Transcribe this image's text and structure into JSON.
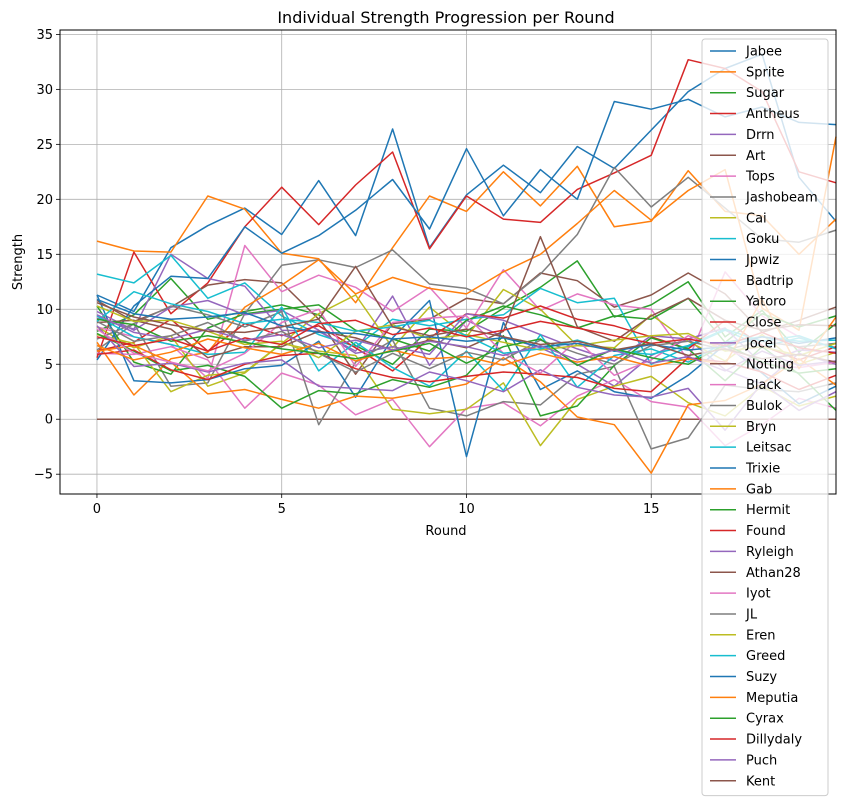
{
  "chart_data": {
    "type": "line",
    "title": "Individual Strength Progression per Round",
    "xlabel": "Round",
    "ylabel": "Strength",
    "xlim": [
      -1,
      20
    ],
    "ylim": [
      -6.8,
      35.4
    ],
    "xticks": [
      0,
      5,
      10,
      15
    ],
    "yticks": [
      -5,
      0,
      5,
      10,
      15,
      20,
      25,
      30,
      35
    ],
    "grid": true,
    "legend_position": "top-right",
    "x": [
      0,
      1,
      2,
      3,
      4,
      5,
      6,
      7,
      8,
      9,
      10,
      11,
      12,
      13,
      14,
      15,
      16,
      17,
      18,
      19,
      20
    ],
    "series": [
      {
        "name": "Jabee",
        "color": "#1f77b4",
        "values": [
          11.3,
          9.8,
          15.6,
          17.6,
          19.2,
          16.8,
          21.7,
          16.7,
          26.4,
          15.6,
          20.4,
          23.1,
          20.6,
          24.8,
          22.8,
          26.3,
          29.8,
          31.9,
          33.2,
          22.0,
          18.0
        ]
      },
      {
        "name": "Sprite",
        "color": "#ff7f0e",
        "values": [
          16.2,
          15.3,
          15.2,
          20.3,
          19.1,
          15.1,
          14.6,
          10.6,
          15.6,
          20.3,
          18.9,
          22.5,
          19.4,
          23.0,
          17.5,
          18.0,
          22.6,
          18.9,
          18.5,
          15.0,
          18.2
        ]
      },
      {
        "name": "Sugar",
        "color": "#2ca02c",
        "values": [
          8.0,
          9.5,
          12.8,
          9.1,
          9.8,
          10.4,
          9.5,
          6.7,
          5.0,
          8.2,
          8.0,
          10.1,
          12.0,
          14.4,
          9.3,
          10.4,
          12.5,
          7.5,
          9.9,
          6.1,
          8.7
        ]
      },
      {
        "name": "Antheus",
        "color": "#d62728",
        "values": [
          5.6,
          15.2,
          9.6,
          12.4,
          17.5,
          21.1,
          17.7,
          21.3,
          24.3,
          15.5,
          20.3,
          18.2,
          17.9,
          20.9,
          22.4,
          24.0,
          32.7,
          31.9,
          29.8,
          22.5,
          21.5
        ]
      },
      {
        "name": "Drrn",
        "color": "#9467bd",
        "values": [
          9.2,
          8.2,
          15.0,
          12.8,
          12.1,
          8.1,
          8.0,
          6.2,
          11.2,
          4.9,
          9.0,
          7.5,
          6.5,
          5.0,
          3.0,
          5.8,
          7.3,
          4.5,
          3.2,
          6.0,
          5.0
        ]
      },
      {
        "name": "Art",
        "color": "#8c564b",
        "values": [
          10.8,
          8.9,
          10.2,
          12.2,
          12.7,
          12.4,
          9.1,
          4.1,
          8.7,
          9.1,
          11.0,
          10.5,
          13.3,
          12.6,
          10.2,
          11.3,
          13.3,
          11.4,
          7.9,
          9.0,
          10.2
        ]
      },
      {
        "name": "Tops",
        "color": "#e377c2",
        "values": [
          8.4,
          7.5,
          6.8,
          3.7,
          15.8,
          11.6,
          13.1,
          12.0,
          9.8,
          12.0,
          8.3,
          13.6,
          9.9,
          11.4,
          10.4,
          10.0,
          5.4,
          13.4,
          9.4,
          7.5,
          6.5
        ]
      },
      {
        "name": "Jashobeam",
        "color": "#7f7f7f",
        "values": [
          6.3,
          8.7,
          3.0,
          3.3,
          9.6,
          14.0,
          14.5,
          13.8,
          15.4,
          12.3,
          11.9,
          10.5,
          13.2,
          16.8,
          22.9,
          19.3,
          22.0,
          19.2,
          16.4,
          16.1,
          17.2
        ]
      },
      {
        "name": "Cai",
        "color": "#bcbd22",
        "values": [
          8.4,
          6.5,
          7.6,
          3.0,
          4.2,
          6.9,
          9.6,
          11.3,
          6.5,
          10.2,
          7.5,
          11.8,
          10.0,
          6.7,
          6.5,
          9.5,
          7.1,
          5.3,
          7.7,
          5.0,
          6.1
        ]
      },
      {
        "name": "Goku",
        "color": "#17becf",
        "values": [
          13.2,
          12.4,
          14.9,
          11.0,
          12.4,
          9.4,
          7.7,
          6.6,
          9.1,
          8.5,
          9.1,
          9.5,
          11.9,
          10.6,
          11.0,
          5.0,
          6.6,
          8.1,
          6.6,
          7.4,
          6.5
        ]
      },
      {
        "name": "Jpwiz",
        "color": "#1f77b4",
        "values": [
          5.4,
          10.3,
          13.0,
          12.8,
          17.5,
          15.1,
          16.7,
          19.0,
          21.8,
          17.3,
          24.6,
          18.5,
          22.7,
          20.0,
          28.9,
          28.2,
          29.1,
          27.5,
          28.4,
          27.0,
          26.8
        ]
      },
      {
        "name": "Badtrip",
        "color": "#ff7f0e",
        "values": [
          7.0,
          2.2,
          5.5,
          6.1,
          10.2,
          12.2,
          14.5,
          11.4,
          12.9,
          11.9,
          11.4,
          13.4,
          15.0,
          17.8,
          20.8,
          18.1,
          20.8,
          22.7,
          10.1,
          8.1,
          25.7
        ]
      },
      {
        "name": "Yatoro",
        "color": "#2ca02c",
        "values": [
          10.3,
          5.2,
          4.1,
          8.3,
          9.6,
          10.0,
          10.4,
          8.1,
          7.3,
          6.2,
          9.0,
          10.3,
          9.5,
          8.3,
          9.4,
          9.1,
          11.0,
          7.0,
          9.6,
          8.4,
          9.4
        ]
      },
      {
        "name": "Close",
        "color": "#d62728",
        "values": [
          6.2,
          7.0,
          9.1,
          6.2,
          8.7,
          7.6,
          8.5,
          6.5,
          4.4,
          7.4,
          9.6,
          9.2,
          10.3,
          9.1,
          8.5,
          7.5,
          6.4,
          9.0,
          6.7,
          5.4,
          6.6
        ]
      },
      {
        "name": "Jocel",
        "color": "#9467bd",
        "values": [
          9.8,
          8.1,
          10.2,
          10.8,
          9.5,
          9.9,
          8.1,
          6.0,
          6.6,
          5.9,
          9.6,
          9.0,
          7.7,
          6.4,
          5.3,
          7.6,
          7.3,
          8.3,
          5.0,
          6.3,
          6.1
        ]
      },
      {
        "name": "Notting",
        "color": "#8c564b",
        "values": [
          0,
          0,
          0,
          0,
          0,
          0,
          0,
          0,
          0,
          0,
          0,
          0,
          0,
          0,
          0,
          0,
          0,
          0,
          0,
          0,
          0
        ]
      },
      {
        "name": "Black",
        "color": "#e377c2",
        "values": [
          6.0,
          5.9,
          6.6,
          5.4,
          1.0,
          4.2,
          3.1,
          0.4,
          1.8,
          -2.5,
          1.0,
          1.5,
          -0.6,
          2.1,
          3.6,
          1.6,
          1.1,
          -2.4,
          -0.5,
          1.9,
          1.0
        ]
      },
      {
        "name": "Bulok",
        "color": "#7f7f7f",
        "values": [
          7.3,
          8.7,
          10.3,
          9.5,
          8.4,
          9.8,
          -0.5,
          5.2,
          7.2,
          1.0,
          0.3,
          1.6,
          1.3,
          4.1,
          4.8,
          -2.7,
          -1.7,
          3.1,
          2.7,
          2.5,
          3.3
        ]
      },
      {
        "name": "Bryn",
        "color": "#bcbd22",
        "values": [
          7.7,
          6.9,
          2.5,
          4.0,
          4.3,
          6.9,
          6.2,
          5.8,
          0.9,
          0.5,
          0.9,
          3.3,
          -2.4,
          1.8,
          3.0,
          3.9,
          1.5,
          0.3,
          3.0,
          1.2,
          2.1
        ]
      },
      {
        "name": "Leitsac",
        "color": "#17becf",
        "values": [
          9.4,
          7.5,
          6.8,
          5.9,
          6.1,
          10.2,
          4.4,
          7.0,
          4.7,
          3.0,
          6.2,
          2.6,
          7.7,
          2.9,
          5.8,
          6.4,
          5.2,
          7.0,
          7.5,
          7.1,
          7.2
        ]
      },
      {
        "name": "Trixie",
        "color": "#1f77b4",
        "values": [
          11.3,
          3.5,
          3.3,
          3.6,
          4.6,
          4.9,
          7.1,
          2.0,
          7.4,
          10.8,
          -3.4,
          8.8,
          2.7,
          4.4,
          2.5,
          1.9,
          4.0,
          6.8,
          4.2,
          1.4,
          3.0
        ]
      },
      {
        "name": "Gab",
        "color": "#ff7f0e",
        "values": [
          6.2,
          6.7,
          5.2,
          2.3,
          2.7,
          1.8,
          1.0,
          2.1,
          1.9,
          2.5,
          3.2,
          5.6,
          3.4,
          0.2,
          -0.5,
          -4.9,
          1.3,
          1.7,
          3.2,
          5.5,
          3.1
        ]
      },
      {
        "name": "Hermit",
        "color": "#2ca02c",
        "values": [
          7.8,
          6.2,
          4.4,
          4.9,
          3.9,
          1.0,
          2.6,
          2.3,
          3.6,
          2.9,
          4.0,
          7.6,
          0.3,
          1.2,
          4.9,
          7.4,
          6.4,
          3.5,
          6.6,
          4.1,
          0.8
        ]
      },
      {
        "name": "Found",
        "color": "#d62728",
        "values": [
          5.9,
          6.3,
          4.5,
          3.6,
          5.0,
          5.8,
          6.0,
          4.6,
          3.8,
          3.4,
          3.9,
          4.3,
          4.1,
          3.8,
          2.8,
          2.5,
          5.6,
          5.2,
          4.3,
          2.7,
          4.0
        ]
      },
      {
        "name": "Ryleigh",
        "color": "#9467bd",
        "values": [
          8.5,
          4.8,
          5.1,
          4.3,
          5.1,
          5.4,
          3.0,
          2.8,
          2.6,
          4.3,
          3.5,
          2.5,
          4.5,
          2.9,
          2.2,
          2.0,
          2.8,
          -1.0,
          3.3,
          0.8,
          2.5
        ]
      },
      {
        "name": "Athan28",
        "color": "#8c564b",
        "values": [
          8.8,
          9.0,
          8.2,
          5.6,
          6.6,
          6.6,
          8.0,
          7.4,
          6.3,
          7.2,
          6.5,
          8.0,
          16.6,
          8.4,
          7.1,
          9.4,
          11.0,
          9.0,
          8.1,
          8.6,
          8.5
        ]
      },
      {
        "name": "Iyot",
        "color": "#e377c2",
        "values": [
          8.2,
          6.0,
          5.2,
          4.4,
          6.0,
          8.8,
          10.0,
          4.8,
          8.8,
          9.2,
          9.4,
          6.0,
          4.2,
          7.2,
          4.0,
          5.4,
          7.6,
          6.4,
          5.0,
          4.7,
          5.2
        ]
      },
      {
        "name": "JL",
        "color": "#7f7f7f",
        "values": [
          8.9,
          7.1,
          7.6,
          8.8,
          7.1,
          8.0,
          6.0,
          4.3,
          6.0,
          4.6,
          6.1,
          5.4,
          7.2,
          6.0,
          5.0,
          6.7,
          7.1,
          6.3,
          7.1,
          6.6,
          6.9
        ]
      },
      {
        "name": "Eren",
        "color": "#bcbd22",
        "values": [
          10.3,
          8.9,
          9.0,
          8.0,
          6.8,
          7.1,
          5.6,
          8.0,
          8.6,
          7.3,
          7.7,
          7.0,
          6.3,
          6.7,
          7.2,
          7.6,
          7.8,
          6.2,
          6.6,
          5.8,
          6.9
        ]
      },
      {
        "name": "Greed",
        "color": "#17becf",
        "values": [
          8.9,
          11.6,
          10.5,
          9.8,
          8.7,
          9.1,
          8.8,
          8.0,
          8.4,
          9.0,
          7.6,
          6.0,
          6.4,
          7.2,
          6.2,
          5.9,
          6.7,
          8.2,
          7.1,
          7.6,
          6.4
        ]
      },
      {
        "name": "Suzy",
        "color": "#1f77b4",
        "values": [
          10.9,
          9.6,
          9.1,
          9.3,
          9.7,
          8.5,
          7.9,
          7.8,
          7.3,
          7.5,
          7.1,
          7.4,
          6.6,
          6.9,
          6.2,
          6.8,
          6.3,
          6.6,
          7.5,
          6.9,
          7.4
        ]
      },
      {
        "name": "Meputia",
        "color": "#ff7f0e",
        "values": [
          6.7,
          5.4,
          6.1,
          7.3,
          6.5,
          5.9,
          6.9,
          5.3,
          6.3,
          5.5,
          5.7,
          4.9,
          6.0,
          5.2,
          5.7,
          4.8,
          5.5,
          5.0,
          10.9,
          4.6,
          9.3
        ]
      },
      {
        "name": "Cyrax",
        "color": "#2ca02c",
        "values": [
          9.1,
          8.6,
          7.1,
          7.6,
          7.0,
          6.4,
          6.0,
          5.5,
          6.2,
          6.9,
          5.1,
          6.6,
          7.3,
          4.9,
          6.4,
          5.6,
          5.0,
          6.8,
          5.2,
          4.2,
          4.6
        ]
      },
      {
        "name": "Dillydaly",
        "color": "#d62728",
        "values": [
          7.5,
          6.7,
          7.3,
          6.2,
          7.4,
          6.8,
          8.7,
          9.0,
          7.7,
          8.3,
          7.5,
          8.1,
          8.9,
          8.3,
          7.6,
          6.9,
          7.3,
          6.7,
          7.9,
          6.5,
          6.0
        ]
      },
      {
        "name": "Puch",
        "color": "#9467bd",
        "values": [
          9.5,
          7.9,
          7.3,
          8.2,
          7.2,
          7.7,
          6.5,
          7.2,
          6.3,
          7.1,
          6.6,
          5.8,
          6.7,
          5.4,
          6.3,
          5.1,
          5.7,
          4.4,
          6.2,
          4.9,
          5.3
        ]
      },
      {
        "name": "Kent",
        "color": "#8c564b",
        "values": [
          10.6,
          9.3,
          8.6,
          8.0,
          7.9,
          8.4,
          9.1,
          13.9,
          8.4,
          7.6,
          8.2,
          7.5,
          6.8,
          7.1,
          6.3,
          6.9,
          5.8,
          6.4,
          5.5,
          5.9,
          5.2
        ]
      }
    ]
  }
}
